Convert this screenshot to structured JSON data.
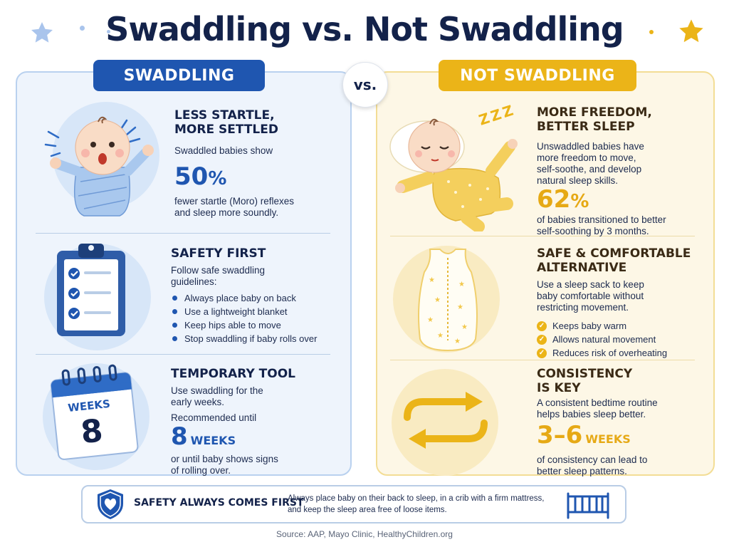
{
  "title": "Swaddling vs. Not Swaddling",
  "colors": {
    "navy": "#13224a",
    "blue": "#1f56b0",
    "gold": "#ebb418"
  },
  "left": {
    "tag": "SWADDLING",
    "s1": {
      "heading": [
        "LESS STARTLE,",
        "MORE SETTLED"
      ],
      "intro": "Swaddled babies show",
      "stat": "50",
      "stat_unit": "%",
      "after": [
        "fewer startle (Moro) reflexes",
        "and sleep more soundly."
      ]
    },
    "s2": {
      "heading": "SAFETY FIRST",
      "intro": [
        "Follow safe swaddling",
        "guidelines:"
      ],
      "bullets": [
        "Always place baby on back",
        "Use a lightweight blanket",
        "Keep hips able to move",
        "Stop swaddling if baby rolls over"
      ]
    },
    "s3": {
      "heading": "TEMPORARY TOOL",
      "intro": [
        "Use swaddling for the",
        "early weeks."
      ],
      "rec": "Recommended until",
      "stat": "8",
      "stat_unit": "WEEKS",
      "after": [
        "or until baby shows signs",
        "of rolling over."
      ],
      "calendar_label": "WEEKS",
      "calendar_number": "8"
    }
  },
  "vs": "vs.",
  "right": {
    "tag": "NOT SWADDLING",
    "s1": {
      "heading": [
        "MORE FREEDOM,",
        "BETTER SLEEP"
      ],
      "intro": [
        "Unswaddled babies have",
        "more freedom to move,",
        "self-soothe, and develop",
        "natural sleep skills."
      ],
      "stat": "62",
      "stat_unit": "%",
      "after": [
        "of babies transitioned to better",
        "self-soothing by 3 months."
      ],
      "zzz": "Z Z Z"
    },
    "s2": {
      "heading": [
        "SAFE & COMFORTABLE",
        "ALTERNATIVE"
      ],
      "intro": [
        "Use a sleep sack to keep",
        "baby comfortable without",
        "restricting movement."
      ],
      "checks": [
        "Keeps baby warm",
        "Allows natural movement",
        "Reduces risk of overheating"
      ]
    },
    "s3": {
      "heading": [
        "CONSISTENCY",
        "IS KEY"
      ],
      "intro": [
        "A consistent bedtime routine",
        "helps babies sleep better."
      ],
      "stat": "3–6",
      "stat_unit": "WEEKS",
      "after": [
        "of consistency can lead to",
        "better sleep patterns."
      ]
    }
  },
  "banner": {
    "title": "SAFETY ALWAYS COMES FIRST",
    "text": "Always place baby on their back to sleep, in a crib with a firm mattress, and keep the sleep area free of loose items."
  },
  "source": "Source: AAP, Mayo Clinic, HealthyChildren.org",
  "icons": [
    "star-icon",
    "baby-startled-illustration",
    "clipboard-icon",
    "calendar-icon",
    "sleeping-baby-illustration",
    "sleep-sack-illustration",
    "cycle-arrows-icon",
    "shield-heart-icon",
    "crib-icon"
  ]
}
